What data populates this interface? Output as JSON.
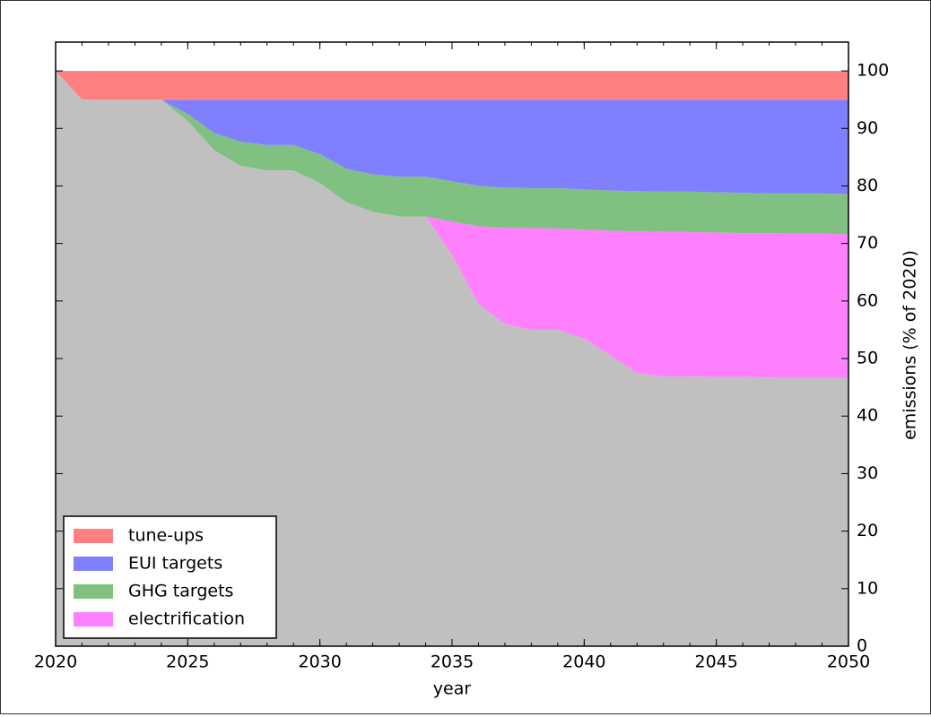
{
  "chart_data": {
    "type": "stacked_area",
    "x_label": "year",
    "y_label": "emissions (% of 2020)",
    "x": [
      2020,
      2021,
      2022,
      2023,
      2024,
      2025,
      2026,
      2027,
      2028,
      2029,
      2030,
      2031,
      2032,
      2033,
      2034,
      2035,
      2036,
      2037,
      2038,
      2039,
      2040,
      2041,
      2042,
      2043,
      2044,
      2045,
      2046,
      2047,
      2048,
      2049,
      2050
    ],
    "series": [
      {
        "color": "#c0c0c0",
        "values": [
          100,
          95,
          95,
          95,
          95,
          91.3,
          86.2,
          83.5,
          82.7,
          82.7,
          80.5,
          77.2,
          75.5,
          74.7,
          74.7,
          68,
          59.5,
          56,
          55,
          55,
          53.5,
          50.5,
          47.5,
          46.9,
          46.9,
          46.8,
          46.8,
          46.7,
          46.6,
          46.6,
          46.6
        ]
      },
      {
        "name": "electrification",
        "color": "#ff80ff",
        "values": [
          0,
          0,
          0,
          0,
          0,
          0,
          0,
          0,
          0,
          0,
          0,
          0,
          0,
          0,
          0,
          5.8,
          13.5,
          16.7,
          17.7,
          17.6,
          18.9,
          21.7,
          24.6,
          25.1,
          25.1,
          25.1,
          25.0,
          25.1,
          25.1,
          25.1,
          25.0
        ]
      },
      {
        "name": "GHG targets",
        "color": "#80c080",
        "values": [
          0,
          0,
          0,
          0,
          0,
          1.2,
          3.0,
          4.2,
          4.4,
          4.4,
          5.0,
          5.8,
          6.5,
          6.9,
          6.9,
          7.0,
          7.0,
          7.0,
          6.9,
          7.0,
          7.0,
          7.0,
          7.0,
          7.0,
          7.0,
          7.0,
          7.0,
          6.9,
          7.0,
          7.0,
          7.0
        ]
      },
      {
        "name": "EUI targets",
        "color": "#8080ff",
        "values": [
          0,
          0,
          0,
          0,
          0,
          2.5,
          5.8,
          7.3,
          7.9,
          7.9,
          9.5,
          12.0,
          13.0,
          13.4,
          13.4,
          14.2,
          15.0,
          15.3,
          15.4,
          15.4,
          15.6,
          15.8,
          15.9,
          16.0,
          16.0,
          16.1,
          16.2,
          16.3,
          16.3,
          16.3,
          16.4
        ]
      },
      {
        "name": "tune-ups",
        "color": "#ff8080",
        "values": [
          0,
          5,
          5,
          5,
          5,
          5,
          5,
          5,
          5,
          5,
          5,
          5,
          5,
          5,
          5,
          5,
          5,
          5,
          5,
          5,
          5,
          5,
          5,
          5,
          5,
          5,
          5,
          5,
          5,
          5,
          5
        ]
      }
    ],
    "xlim": [
      2020,
      2050
    ],
    "xticks": [
      2020,
      2025,
      2030,
      2035,
      2040,
      2045,
      2050
    ],
    "ylim": [
      0,
      105
    ],
    "yticks": [
      0,
      10,
      20,
      30,
      40,
      50,
      60,
      70,
      80,
      90,
      100
    ],
    "y_axis_side": "right",
    "legend": "lower left"
  }
}
